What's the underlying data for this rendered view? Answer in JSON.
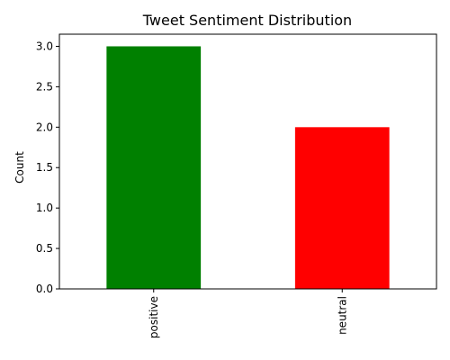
{
  "chart_data": {
    "type": "bar",
    "title": "Tweet Sentiment Distribution",
    "xlabel": "",
    "ylabel": "Count",
    "categories": [
      "positive",
      "neutral"
    ],
    "values": [
      3,
      2
    ],
    "colors": [
      "#008000",
      "#ff0000"
    ],
    "ylim": [
      0,
      3.15
    ],
    "yticks": [
      0.0,
      0.5,
      1.0,
      1.5,
      2.0,
      2.5,
      3.0
    ],
    "ytick_labels": [
      "0.0",
      "0.5",
      "1.0",
      "1.5",
      "2.0",
      "2.5",
      "3.0"
    ],
    "grid": false,
    "legend": "none",
    "xtick_rotation": "vertical"
  }
}
